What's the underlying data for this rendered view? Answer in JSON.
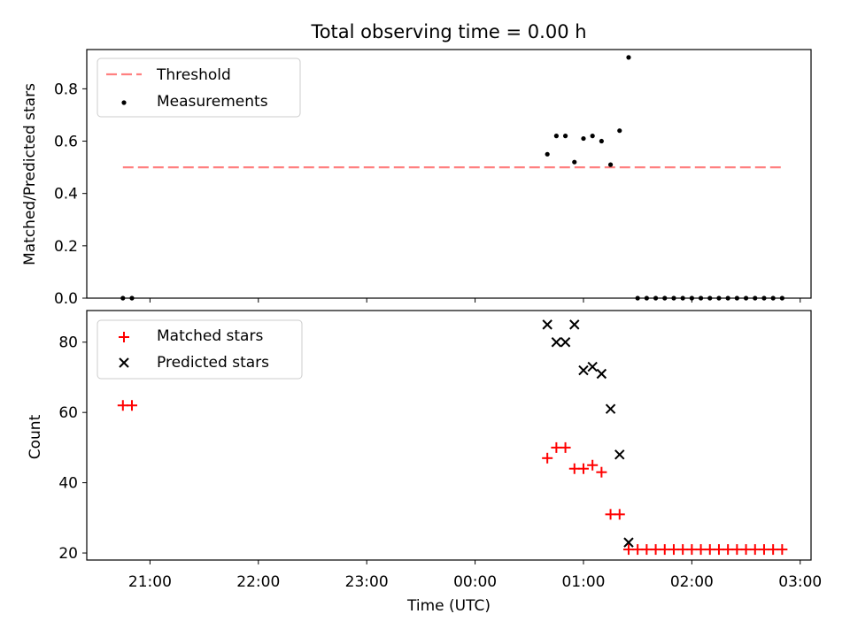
{
  "figure_title": "Total observing time = 0.00 h",
  "x_axis": {
    "label": "Time (UTC)",
    "ticks": [
      "21:00",
      "22:00",
      "23:00",
      "00:00",
      "01:00",
      "02:00",
      "03:00"
    ],
    "range": [
      "20:25",
      "03:06"
    ]
  },
  "chart_data": [
    {
      "type": "scatter",
      "ylabel": "Matched/Predicted stars",
      "ylim": [
        0.0,
        0.95
      ],
      "yticks": [
        "0.0",
        "0.2",
        "0.4",
        "0.6",
        "0.8"
      ],
      "legend_position": "top-left",
      "threshold": {
        "name": "Threshold",
        "value": 0.5,
        "x_start": "20:45",
        "x_end": "02:50",
        "color": "#ff8080",
        "style": "dashed"
      },
      "series": [
        {
          "name": "Measurements",
          "color": "#000000",
          "points": [
            {
              "x": "20:45",
              "y": 0.0
            },
            {
              "x": "20:50",
              "y": 0.0
            },
            {
              "x": "00:40",
              "y": 0.55
            },
            {
              "x": "00:45",
              "y": 0.62
            },
            {
              "x": "00:50",
              "y": 0.62
            },
            {
              "x": "00:55",
              "y": 0.52
            },
            {
              "x": "01:00",
              "y": 0.61
            },
            {
              "x": "01:05",
              "y": 0.62
            },
            {
              "x": "01:10",
              "y": 0.6
            },
            {
              "x": "01:15",
              "y": 0.51
            },
            {
              "x": "01:20",
              "y": 0.64
            },
            {
              "x": "01:25",
              "y": 0.92
            },
            {
              "x": "01:30",
              "y": 0.0
            },
            {
              "x": "01:35",
              "y": 0.0
            },
            {
              "x": "01:40",
              "y": 0.0
            },
            {
              "x": "01:45",
              "y": 0.0
            },
            {
              "x": "01:50",
              "y": 0.0
            },
            {
              "x": "01:55",
              "y": 0.0
            },
            {
              "x": "02:00",
              "y": 0.0
            },
            {
              "x": "02:05",
              "y": 0.0
            },
            {
              "x": "02:10",
              "y": 0.0
            },
            {
              "x": "02:15",
              "y": 0.0
            },
            {
              "x": "02:20",
              "y": 0.0
            },
            {
              "x": "02:25",
              "y": 0.0
            },
            {
              "x": "02:30",
              "y": 0.0
            },
            {
              "x": "02:35",
              "y": 0.0
            },
            {
              "x": "02:40",
              "y": 0.0
            },
            {
              "x": "02:45",
              "y": 0.0
            },
            {
              "x": "02:50",
              "y": 0.0
            }
          ]
        }
      ]
    },
    {
      "type": "scatter",
      "ylabel": "Count",
      "ylim": [
        18,
        89
      ],
      "yticks": [
        "20",
        "40",
        "60",
        "80"
      ],
      "legend_position": "top-left",
      "series": [
        {
          "name": "Matched stars",
          "marker": "plus",
          "color": "#ff0000",
          "points": [
            {
              "x": "20:45",
              "y": 62
            },
            {
              "x": "20:50",
              "y": 62
            },
            {
              "x": "00:40",
              "y": 47
            },
            {
              "x": "00:45",
              "y": 50
            },
            {
              "x": "00:50",
              "y": 50
            },
            {
              "x": "00:55",
              "y": 44
            },
            {
              "x": "01:00",
              "y": 44
            },
            {
              "x": "01:05",
              "y": 45
            },
            {
              "x": "01:10",
              "y": 43
            },
            {
              "x": "01:15",
              "y": 31
            },
            {
              "x": "01:20",
              "y": 31
            },
            {
              "x": "01:25",
              "y": 21
            },
            {
              "x": "01:30",
              "y": 21
            },
            {
              "x": "01:35",
              "y": 21
            },
            {
              "x": "01:40",
              "y": 21
            },
            {
              "x": "01:45",
              "y": 21
            },
            {
              "x": "01:50",
              "y": 21
            },
            {
              "x": "01:55",
              "y": 21
            },
            {
              "x": "02:00",
              "y": 21
            },
            {
              "x": "02:05",
              "y": 21
            },
            {
              "x": "02:10",
              "y": 21
            },
            {
              "x": "02:15",
              "y": 21
            },
            {
              "x": "02:20",
              "y": 21
            },
            {
              "x": "02:25",
              "y": 21
            },
            {
              "x": "02:30",
              "y": 21
            },
            {
              "x": "02:35",
              "y": 21
            },
            {
              "x": "02:40",
              "y": 21
            },
            {
              "x": "02:45",
              "y": 21
            },
            {
              "x": "02:50",
              "y": 21
            }
          ]
        },
        {
          "name": "Predicted stars",
          "marker": "x",
          "color": "#000000",
          "points": [
            {
              "x": "00:40",
              "y": 85
            },
            {
              "x": "00:45",
              "y": 80
            },
            {
              "x": "00:50",
              "y": 80
            },
            {
              "x": "00:55",
              "y": 85
            },
            {
              "x": "01:00",
              "y": 72
            },
            {
              "x": "01:05",
              "y": 73
            },
            {
              "x": "01:10",
              "y": 71
            },
            {
              "x": "01:15",
              "y": 61
            },
            {
              "x": "01:20",
              "y": 48
            },
            {
              "x": "01:25",
              "y": 23
            }
          ]
        }
      ]
    }
  ]
}
